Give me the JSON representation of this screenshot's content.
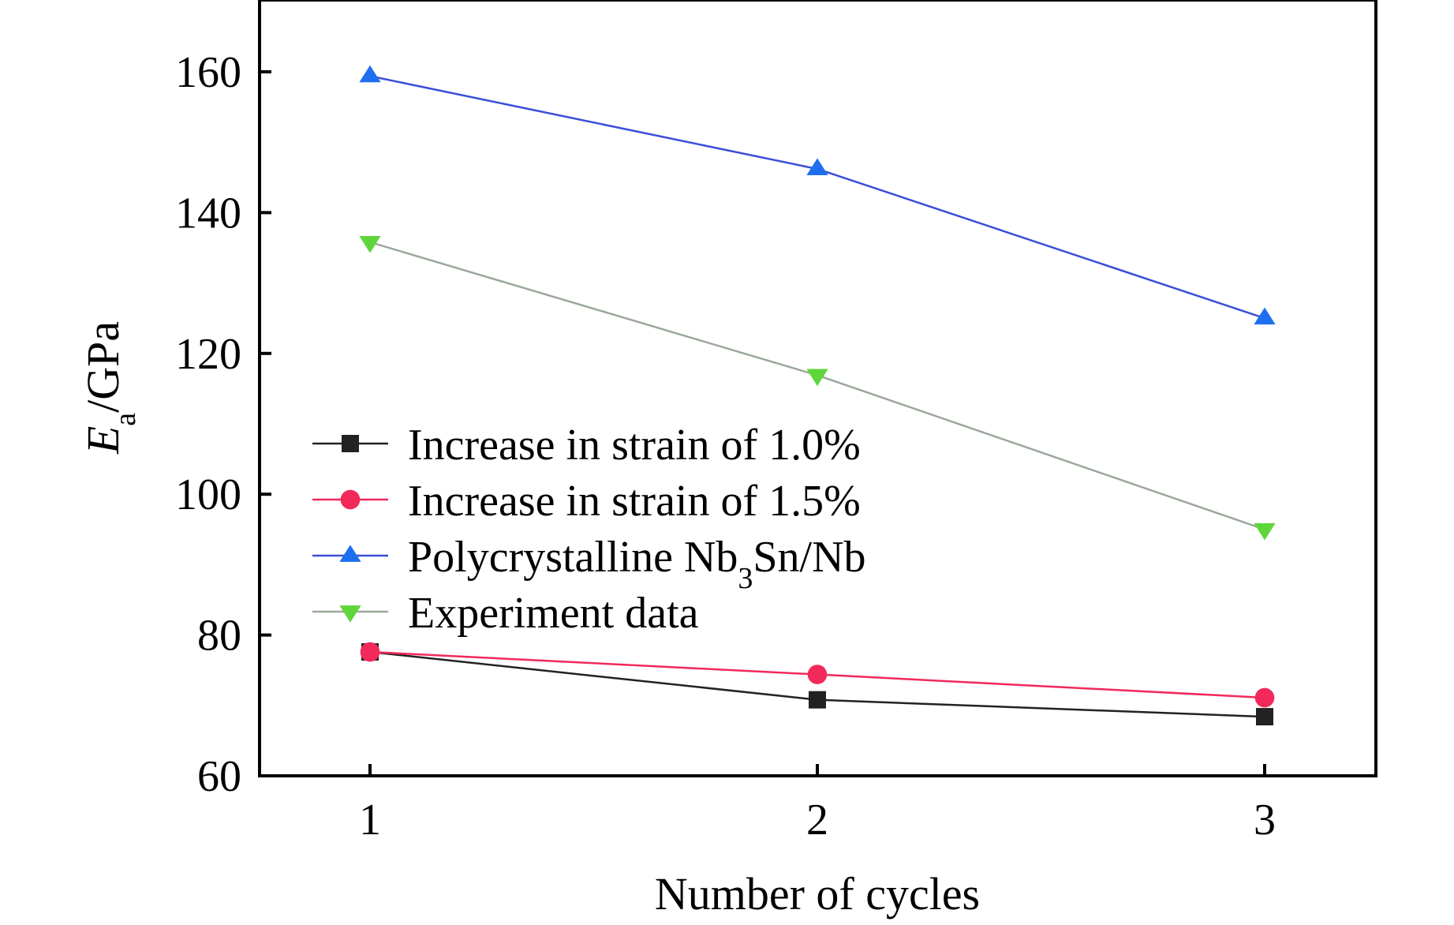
{
  "chart_data": {
    "type": "line",
    "title": "",
    "xlabel": "Number of cycles",
    "ylabel": {
      "symbol": "E",
      "subscript": "a",
      "unit": "/GPa"
    },
    "x": [
      1,
      2,
      3
    ],
    "xticks": [
      "1",
      "2",
      "3"
    ],
    "xlim": [
      0.75,
      3.25
    ],
    "ylim": [
      60,
      170
    ],
    "yticks": [
      60,
      80,
      100,
      120,
      140,
      160
    ],
    "grid": false,
    "legend_position": "middle-left",
    "series": [
      {
        "name": "Increase in strain of 1.0%",
        "name_parts": [
          {
            "text": "Increase in strain of 1.0%"
          }
        ],
        "values": [
          77.6,
          70.8,
          68.4
        ],
        "color": "#222222",
        "line_color": "#222222",
        "marker": "square"
      },
      {
        "name": "Increase in strain of 1.5%",
        "name_parts": [
          {
            "text": "Increase in strain of 1.5%"
          }
        ],
        "values": [
          77.6,
          74.4,
          71.1
        ],
        "color": "#f2295a",
        "line_color": "#f2295a",
        "marker": "circle"
      },
      {
        "name": "Polycrystalline Nb3Sn/Nb",
        "name_parts": [
          {
            "text": "Polycrystalline Nb"
          },
          {
            "text": "3",
            "sub": true
          },
          {
            "text": "Sn/Nb"
          }
        ],
        "values": [
          159.4,
          146.2,
          125.0
        ],
        "color": "#1e6ff0",
        "line_color": "#3a4fd8",
        "marker": "triangle-up"
      },
      {
        "name": "Experiment data",
        "name_parts": [
          {
            "text": "Experiment data"
          }
        ],
        "values": [
          135.8,
          116.9,
          95.0
        ],
        "color": "#5ed63a",
        "line_color": "#9aa89a",
        "marker": "triangle-down"
      }
    ]
  }
}
